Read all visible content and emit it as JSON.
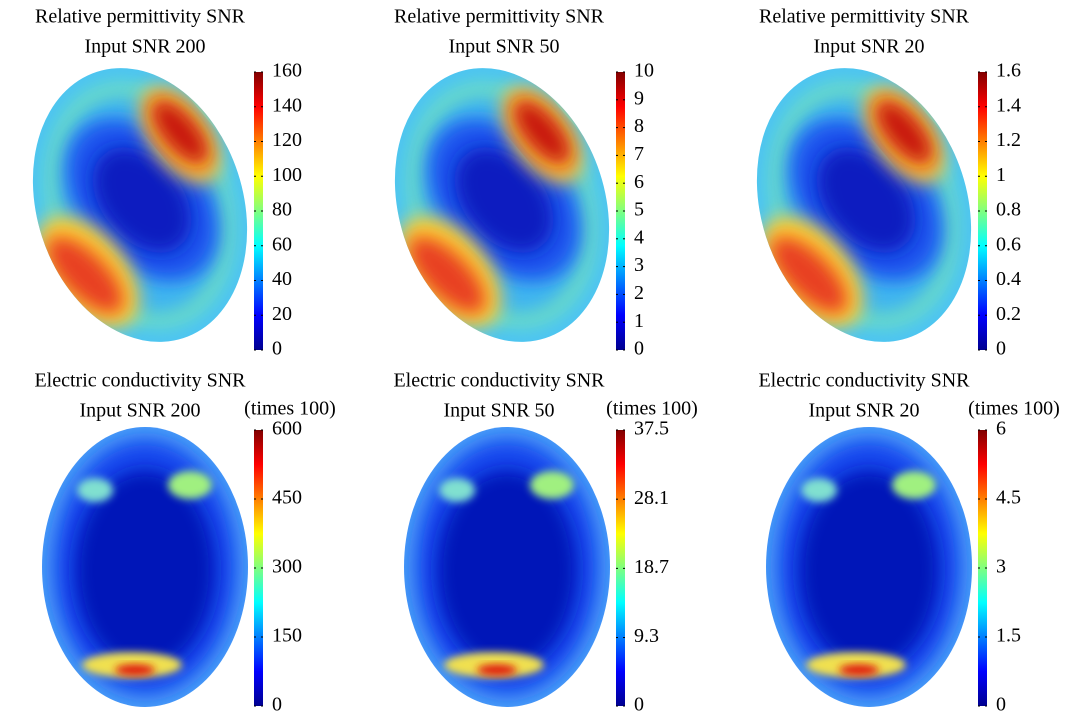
{
  "chart_data": [
    {
      "type": "heatmap",
      "title": "Relative permittivity SNR",
      "subtitle": "Input SNR 200",
      "colormap": "jet",
      "clim": [
        0,
        160
      ],
      "cticks": [
        0,
        20,
        40,
        60,
        80,
        100,
        120,
        140,
        160
      ]
    },
    {
      "type": "heatmap",
      "title": "Relative permittivity SNR",
      "subtitle": "Input SNR 50",
      "colormap": "jet",
      "clim": [
        0,
        10
      ],
      "cticks": [
        0,
        1,
        2,
        3,
        4,
        5,
        6,
        7,
        8,
        9,
        10
      ]
    },
    {
      "type": "heatmap",
      "title": "Relative permittivity SNR",
      "subtitle": "Input SNR 20",
      "colormap": "jet",
      "clim": [
        0,
        1.6
      ],
      "cticks": [
        0,
        0.2,
        0.4,
        0.6,
        0.8,
        1,
        1.2,
        1.4,
        1.6
      ]
    },
    {
      "type": "heatmap",
      "title": "Electric conductivity SNR",
      "subtitle": "Input SNR 200",
      "colorbar_label": "(times 100)",
      "colormap": "jet",
      "clim": [
        0,
        600
      ],
      "cticks": [
        0,
        150,
        300,
        450,
        600
      ]
    },
    {
      "type": "heatmap",
      "title": "Electric conductivity SNR",
      "subtitle": "Input SNR 50",
      "colorbar_label": "(times 100)",
      "colormap": "jet",
      "clim": [
        0,
        37.5
      ],
      "cticks": [
        0,
        9.3,
        18.7,
        28.1,
        37.5
      ]
    },
    {
      "type": "heatmap",
      "title": "Electric conductivity SNR",
      "subtitle": "Input SNR 20",
      "colorbar_label": "(times 100)",
      "colormap": "jet",
      "clim": [
        0,
        6
      ],
      "cticks": [
        0,
        1.5,
        3,
        4.5,
        6
      ]
    }
  ]
}
